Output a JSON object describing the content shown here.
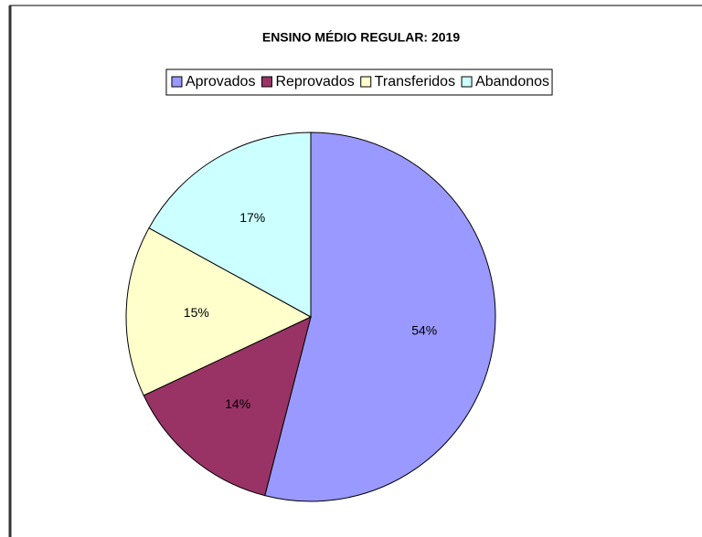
{
  "chart_data": {
    "type": "pie",
    "title": "ENSINO MÉDIO REGULAR: 2019",
    "categories": [
      "Aprovados",
      "Reprovados",
      "Transferidos",
      "Abandonos"
    ],
    "values": [
      54,
      14,
      15,
      17
    ],
    "value_labels": [
      "54%",
      "14%",
      "15%",
      "17%"
    ],
    "colors": [
      "#9999ff",
      "#993366",
      "#ffffcc",
      "#ccffff"
    ],
    "legend": "top"
  }
}
